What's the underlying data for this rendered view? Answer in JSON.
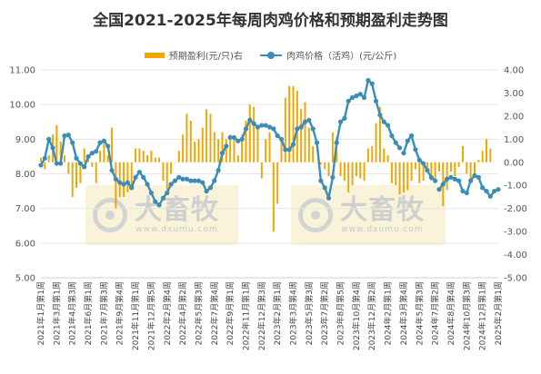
{
  "chart_data": {
    "type": "bar+line",
    "title": "全国2021-2025年每周肉鸡价格和预期盈利走势图",
    "legend_position": "top",
    "series": [
      {
        "name": "预期盈利(元/只)右",
        "type": "bar",
        "axis": "right",
        "color": "#F0A500",
        "values": [
          0.2,
          -0.3,
          0.3,
          1.2,
          1.6,
          0.9,
          0.3,
          -0.5,
          -1.5,
          -1.1,
          -0.9,
          0.6,
          0.3,
          -0.2,
          -0.9,
          0.5,
          0.8,
          0.3,
          1.5,
          -2.0,
          -1.5,
          -1.5,
          -1.3,
          -1.2,
          0.6,
          0.6,
          0.5,
          0.3,
          0.5,
          0.2,
          0.2,
          -0.8,
          -1.2,
          -0.5,
          0.0,
          0.5,
          1.2,
          2.1,
          1.8,
          0.9,
          1.0,
          1.5,
          2.3,
          2.1,
          1.3,
          1.0,
          1.3,
          1.0,
          1.2,
          1.0,
          0.3,
          1.2,
          1.8,
          2.5,
          2.4,
          1.5,
          -0.7,
          1.0,
          1.3,
          -3.0,
          -1.8,
          0.9,
          2.8,
          3.3,
          3.3,
          3.1,
          2.3,
          2.6,
          1.5,
          0.7,
          0.0,
          -0.1,
          -0.3,
          -0.6,
          1.3,
          1.1,
          -0.6,
          -0.8,
          -1.3,
          -1.0,
          -0.6,
          -0.7,
          -0.8,
          0.6,
          0.7,
          1.7,
          2.4,
          0.6,
          0.3,
          -0.9,
          -1.0,
          -1.4,
          -1.3,
          -1.2,
          -0.8,
          -0.3,
          -0.9,
          -0.8,
          -0.4,
          -0.8,
          -0.7,
          -0.4,
          -1.9,
          -1.2,
          -0.4,
          -0.6,
          -0.2,
          0.7,
          -0.5,
          -0.9,
          -0.5,
          0.1,
          0.5,
          1.0,
          0.6,
          0.0
        ]
      },
      {
        "name": "肉鸡价格（活鸡）(元/公斤)",
        "type": "line",
        "axis": "left",
        "color": "#3B8DB8",
        "values": [
          8.25,
          8.45,
          9.0,
          8.75,
          8.3,
          8.3,
          9.1,
          9.12,
          8.9,
          8.45,
          8.3,
          8.2,
          8.5,
          8.6,
          8.65,
          8.9,
          8.95,
          8.8,
          8.1,
          7.85,
          7.75,
          7.7,
          7.75,
          7.6,
          7.9,
          8.05,
          7.9,
          7.7,
          7.45,
          7.2,
          7.1,
          7.3,
          7.45,
          7.7,
          7.8,
          7.9,
          7.85,
          7.85,
          7.8,
          7.8,
          7.8,
          7.75,
          7.5,
          7.6,
          7.8,
          8.1,
          8.6,
          8.8,
          9.05,
          9.05,
          8.95,
          9.0,
          9.3,
          9.55,
          9.45,
          9.35,
          9.4,
          9.4,
          9.35,
          9.3,
          9.1,
          9.0,
          8.7,
          8.7,
          8.85,
          9.3,
          9.35,
          9.5,
          9.55,
          9.3,
          8.9,
          7.8,
          7.6,
          7.3,
          7.9,
          8.9,
          9.5,
          9.6,
          10.1,
          10.2,
          10.25,
          10.3,
          10.2,
          10.7,
          10.6,
          10.1,
          9.7,
          9.5,
          9.4,
          9.1,
          8.9,
          8.75,
          8.6,
          8.95,
          9.1,
          8.7,
          8.4,
          8.3,
          8.1,
          7.9,
          7.8,
          7.55,
          7.7,
          7.85,
          7.9,
          7.85,
          7.8,
          7.5,
          7.45,
          7.8,
          7.95,
          7.9,
          7.6,
          7.5,
          7.35,
          7.5,
          7.55
        ]
      }
    ],
    "left_axis": {
      "ylim": [
        5.0,
        11.0
      ],
      "tick_labels": [
        "11.00",
        "10.00",
        "9.00",
        "8.00",
        "7.00",
        "6.00",
        "5.00"
      ]
    },
    "right_axis": {
      "ylim": [
        -5.0,
        4.0
      ],
      "tick_labels": [
        "4.00",
        "3.00",
        "2.00",
        "1.00",
        "0.00",
        "-1.00",
        "-2.00",
        "-3.00",
        "-4.00",
        "-5.00"
      ]
    },
    "x_tick_labels": [
      "2021年1月第1周",
      "2021年3月第1周",
      "2021年4月第3周",
      "2021年6月第1周",
      "2021年7月第3周",
      "2021年9月第4周",
      "2021年11月第1周",
      "2021年12月第5周",
      "2022年2月第4周",
      "2022年4月第2周",
      "2022年5月第3周",
      "2022年7月第4周",
      "2022年9月第1周",
      "2022年11月第1周",
      "2022年12月第3周",
      "2023年2月第1周",
      "2023年3月第4周",
      "2023年5月第3周",
      "2023年7月第2周",
      "2023年8月第5周",
      "2023年10月第4周",
      "2023年12月第2周",
      "2024年2月第1周",
      "2024年3月第4周",
      "2024年5月第3周",
      "2024年7月第2周",
      "2024年8月第4周",
      "2024年10月第3周",
      "2024年12月第1周",
      "2025年2月第1周"
    ],
    "line_segments_shown": [
      [
        0,
        47
      ],
      [
        48,
        79
      ],
      [
        80,
        91
      ],
      [
        92,
        100
      ],
      [
        101,
        116
      ]
    ],
    "grid": true
  },
  "watermark": {
    "text": "大畜牧",
    "url": "www.dxumu.com"
  }
}
